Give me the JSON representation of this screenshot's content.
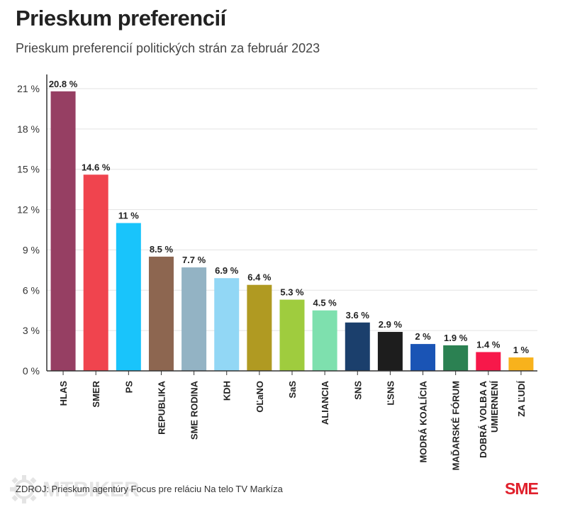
{
  "chart_data": {
    "type": "bar",
    "title": "Prieskum preferencií",
    "subtitle": "Prieskum preferencií politických strán za február 2023",
    "categories": [
      "HLAS",
      "SMER",
      "PS",
      "REPUBLIKA",
      "SME RODINA",
      "KDH",
      "OĽaNO",
      "SaS",
      "ALIANCIA",
      "SNS",
      "ĽSNS",
      "MODRÁ KOALÍCIA",
      "MAĎARSKÉ FÓRUM",
      "DOBRÁ VOLBA A UMIERNENÍ",
      "ZA ĽUDÍ"
    ],
    "category_lines": [
      [
        "HLAS"
      ],
      [
        "SMER"
      ],
      [
        "PS"
      ],
      [
        "REPUBLIKA"
      ],
      [
        "SME RODINA"
      ],
      [
        "KDH"
      ],
      [
        "OĽaNO"
      ],
      [
        "SaS"
      ],
      [
        "ALIANCIA"
      ],
      [
        "SNS"
      ],
      [
        "ĽSNS"
      ],
      [
        "MODRÁ KOALÍCIA"
      ],
      [
        "MAĎARSKÉ FÓRUM"
      ],
      [
        "DOBRÁ VOLBA A",
        "UMIERNENÍ"
      ],
      [
        "ZA ĽUDÍ"
      ]
    ],
    "values": [
      20.8,
      14.6,
      11,
      8.5,
      7.7,
      6.9,
      6.4,
      5.3,
      4.5,
      3.6,
      2.9,
      2,
      1.9,
      1.4,
      1
    ],
    "value_labels": [
      "20.8 %",
      "14.6 %",
      "11 %",
      "8.5 %",
      "7.7 %",
      "6.9 %",
      "6.4 %",
      "5.3 %",
      "4.5 %",
      "3.6 %",
      "2.9 %",
      "2 %",
      "1.9 %",
      "1.4 %",
      "1 %"
    ],
    "colors": [
      "#963f63",
      "#f0444e",
      "#19c4fb",
      "#8d6650",
      "#93b3c4",
      "#92d7f5",
      "#b09a22",
      "#9fcc3e",
      "#7ee0ae",
      "#1b3f6c",
      "#1d1d1d",
      "#1a54b5",
      "#2b8152",
      "#f7184a",
      "#f8b21c"
    ],
    "ylim": [
      0,
      21
    ],
    "yticks": [
      0,
      3,
      6,
      9,
      12,
      15,
      18,
      21
    ],
    "ytick_labels": [
      "0 %",
      "3 %",
      "6 %",
      "9 %",
      "12 %",
      "15 %",
      "18 %",
      "21 %"
    ],
    "xlabel": "",
    "ylabel": "",
    "grid": true,
    "legend": "none"
  },
  "footer": {
    "source": "ZDROJ: Prieskum agentúry Focus pre reláciu Na telo TV Markíza",
    "brand": "SME"
  },
  "watermark": {
    "text": "MTBIKER"
  },
  "colors": {
    "grid": "#e3e3e3",
    "axis": "#333333",
    "brand": "#e0202c"
  }
}
